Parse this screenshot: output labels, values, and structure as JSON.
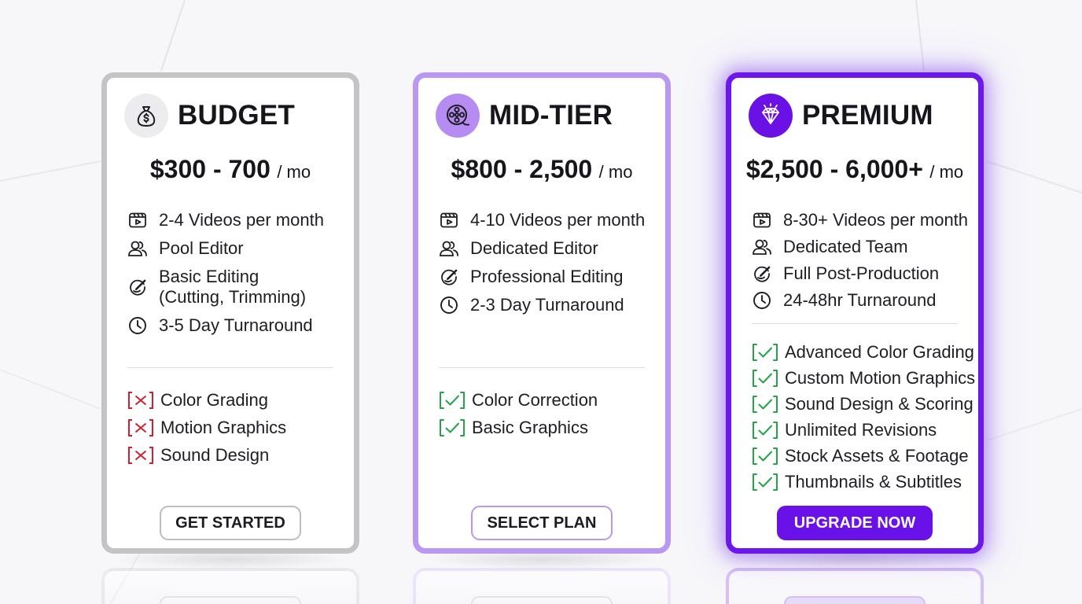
{
  "colors": {
    "budget_border": "#c4c4c6",
    "mid_border": "#ba98f2",
    "premium_border": "#6d18ea",
    "premium_button": "#6a10e8",
    "check": "#22a447",
    "cross": "#d0202f"
  },
  "plans": [
    {
      "id": "budget",
      "icon": "money-bag-icon",
      "name": "BUDGET",
      "price": "$300 - 700",
      "unit": "/ mo",
      "features": [
        {
          "icon": "video-icon",
          "label": "2-4 Videos per month"
        },
        {
          "icon": "users-icon",
          "label": "Pool Editor"
        },
        {
          "icon": "edit-icon",
          "label": "Basic Editing\n(Cutting, Trimming)"
        },
        {
          "icon": "clock-icon",
          "label": "3-5 Day Turnaround"
        }
      ],
      "extras": [
        {
          "status": "excluded",
          "label": "Color Grading"
        },
        {
          "status": "excluded",
          "label": "Motion Graphics"
        },
        {
          "status": "excluded",
          "label": "Sound Design"
        }
      ],
      "cta": "GET STARTED"
    },
    {
      "id": "mid",
      "icon": "film-reel-icon",
      "name": "MID-TIER",
      "price": "$800 - 2,500",
      "unit": "/ mo",
      "features": [
        {
          "icon": "video-icon",
          "label": "4-10 Videos per month"
        },
        {
          "icon": "users-icon",
          "label": "Dedicated Editor"
        },
        {
          "icon": "edit-icon",
          "label": "Professional Editing"
        },
        {
          "icon": "clock-icon",
          "label": "2-3 Day Turnaround"
        }
      ],
      "extras": [
        {
          "status": "included",
          "label": "Color Correction"
        },
        {
          "status": "included",
          "label": "Basic Graphics"
        }
      ],
      "cta": "SELECT PLAN"
    },
    {
      "id": "premium",
      "icon": "diamond-icon",
      "name": "PREMIUM",
      "price": "$2,500 - 6,000+",
      "unit": "/ mo",
      "features": [
        {
          "icon": "video-icon",
          "label": "8-30+ Videos per month"
        },
        {
          "icon": "users-icon",
          "label": "Dedicated Team"
        },
        {
          "icon": "edit-icon",
          "label": "Full Post-Production"
        },
        {
          "icon": "clock-icon",
          "label": "24-48hr Turnaround"
        }
      ],
      "extras": [
        {
          "status": "included",
          "label": "Advanced Color Grading"
        },
        {
          "status": "included",
          "label": "Custom Motion Graphics"
        },
        {
          "status": "included",
          "label": "Sound Design & Scoring"
        },
        {
          "status": "included",
          "label": "Unlimited Revisions"
        },
        {
          "status": "included",
          "label": "Stock Assets & Footage"
        },
        {
          "status": "included",
          "label": "Thumbnails & Subtitles"
        }
      ],
      "cta": "UPGRADE NOW"
    }
  ]
}
